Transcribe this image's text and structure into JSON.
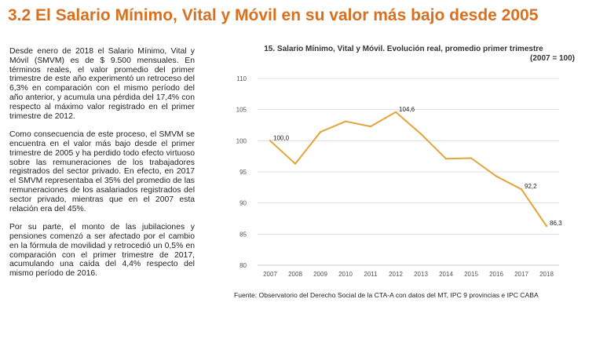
{
  "title": "3.2 El Salario Mínimo, Vital y Móvil en su valor más bajo desde 2005",
  "paragraphs": [
    "Desde enero de 2018 el Salario Mínimo, Vital y Móvil (SMVM) es de $ 9.500 mensuales. En términos reales, el valor promedio del primer trimestre de este año experimentó un retroceso del 6,3% en comparación con el mismo período del año anterior, y acumula una pérdida del 17,4% con respecto al máximo valor registrado en el primer trimestre de 2012.",
    "Como consecuencia de este proceso, el SMVM se encuentra en el valor más bajo desde el primer trimestre de 2005 y ha perdido todo efecto virtuoso sobre las remuneraciones de los trabajadores registrados del sector privado.  En efecto, en 2017 el SMVM representaba el 35% del promedio de las remuneraciones de los asalariados registrados del sector privado, mientras que en el 2007 esta relación era del 45%.",
    "Por su parte, el monto de las jubilaciones y pensiones comenzó a ser afectado por el cambio en la fórmula de movilidad y retrocedió un 0,5% en comparación con el primer trimestre de 2017, acumulando una caída del 4,4% respecto del mismo período de 2016."
  ],
  "chart_data": {
    "type": "line",
    "title": "15. Salario Mínimo, Vital y Móvil. Evolución real, promedio primer trimestre",
    "subtitle": "(2007 = 100)",
    "x": [
      "2007",
      "2008",
      "2009",
      "2010",
      "2011",
      "2012",
      "2013",
      "2014",
      "2015",
      "2016",
      "2017",
      "2018"
    ],
    "series": [
      {
        "values": [
          100.0,
          96.3,
          101.4,
          103.1,
          102.3,
          104.6,
          101.1,
          97.1,
          97.2,
          94.3,
          92.2,
          86.3
        ]
      }
    ],
    "data_labels": [
      {
        "index": 0,
        "text": "100,0"
      },
      {
        "index": 5,
        "text": "104,6"
      },
      {
        "index": 10,
        "text": "92,2"
      },
      {
        "index": 11,
        "text": "86,3"
      }
    ],
    "yticks": [
      80,
      85,
      90,
      95,
      100,
      105,
      110
    ],
    "ylim": [
      80,
      110
    ],
    "grid": true,
    "line_color": "#e3a43a",
    "grid_color": "#d9d9d9",
    "tick_color": "#555555"
  },
  "source": "Fuente: Observatorio del Derecho Social de la CTA-A con datos del MT, IPC 9 provincias e IPC CABA"
}
